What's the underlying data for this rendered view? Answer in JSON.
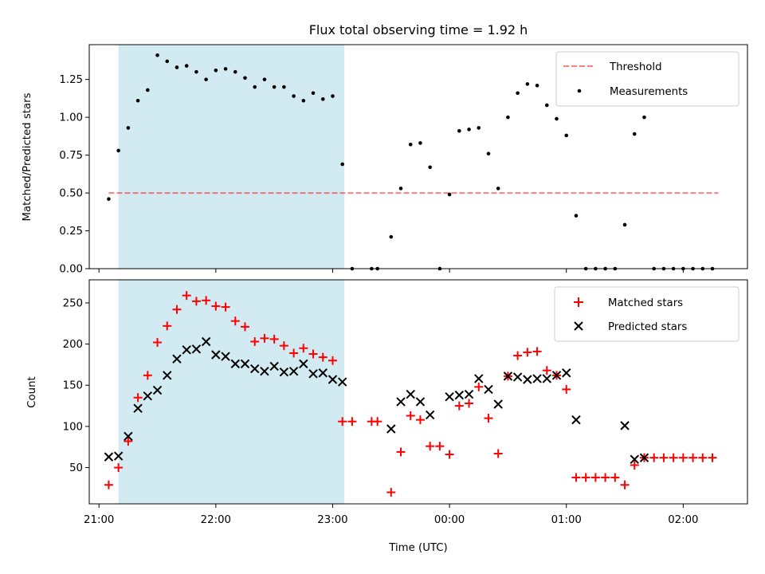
{
  "colors": {
    "shade": "#add8e6",
    "threshold": "#ff0000",
    "measurements": "#000000",
    "matched": "#ff0000",
    "predicted": "#000000"
  },
  "chart_data": [
    {
      "type": "scatter",
      "title": "Flux total observing time = 1.92 h",
      "xlabel": "",
      "ylabel": "Matched/Predicted stars",
      "x_unit": "UTC time",
      "xlim": [
        "20:55",
        "02:33"
      ],
      "ylim": [
        0,
        1.48
      ],
      "yticks": [
        0.0,
        0.25,
        0.5,
        0.75,
        1.0,
        1.25
      ],
      "ytick_labels": [
        "0.00",
        "0.25",
        "0.50",
        "0.75",
        "1.00",
        "1.25"
      ],
      "shaded_interval": [
        "21:10",
        "23:06"
      ],
      "legend_position": "upper right",
      "threshold": {
        "name": "Threshold",
        "style": "dashed",
        "x": [
          "21:05",
          "02:18"
        ],
        "y": 0.5
      },
      "series": [
        {
          "name": "Measurements",
          "marker": "dot",
          "points": [
            [
              "21:05",
              0.46
            ],
            [
              "21:10",
              0.78
            ],
            [
              "21:15",
              0.93
            ],
            [
              "21:20",
              1.11
            ],
            [
              "21:25",
              1.18
            ],
            [
              "21:30",
              1.41
            ],
            [
              "21:35",
              1.37
            ],
            [
              "21:40",
              1.33
            ],
            [
              "21:45",
              1.34
            ],
            [
              "21:50",
              1.3
            ],
            [
              "21:55",
              1.25
            ],
            [
              "22:00",
              1.31
            ],
            [
              "22:05",
              1.32
            ],
            [
              "22:10",
              1.3
            ],
            [
              "22:15",
              1.26
            ],
            [
              "22:20",
              1.2
            ],
            [
              "22:25",
              1.25
            ],
            [
              "22:30",
              1.2
            ],
            [
              "22:35",
              1.2
            ],
            [
              "22:40",
              1.14
            ],
            [
              "22:45",
              1.11
            ],
            [
              "22:50",
              1.16
            ],
            [
              "22:55",
              1.12
            ],
            [
              "23:00",
              1.14
            ],
            [
              "23:05",
              0.69
            ],
            [
              "23:10",
              0.0
            ],
            [
              "23:20",
              0.0
            ],
            [
              "23:23",
              0.0
            ],
            [
              "23:30",
              0.21
            ],
            [
              "23:35",
              0.53
            ],
            [
              "23:40",
              0.82
            ],
            [
              "23:45",
              0.83
            ],
            [
              "23:50",
              0.67
            ],
            [
              "23:55",
              0.0
            ],
            [
              "00:00",
              0.49
            ],
            [
              "00:05",
              0.91
            ],
            [
              "00:10",
              0.92
            ],
            [
              "00:15",
              0.93
            ],
            [
              "00:20",
              0.76
            ],
            [
              "00:25",
              0.53
            ],
            [
              "00:30",
              1.0
            ],
            [
              "00:35",
              1.16
            ],
            [
              "00:40",
              1.22
            ],
            [
              "00:45",
              1.21
            ],
            [
              "00:50",
              1.08
            ],
            [
              "00:55",
              0.99
            ],
            [
              "01:00",
              0.88
            ],
            [
              "01:05",
              0.35
            ],
            [
              "01:10",
              0.0
            ],
            [
              "01:15",
              0.0
            ],
            [
              "01:20",
              0.0
            ],
            [
              "01:25",
              0.0
            ],
            [
              "01:30",
              0.29
            ],
            [
              "01:35",
              0.89
            ],
            [
              "01:40",
              1.0
            ],
            [
              "01:45",
              0.0
            ],
            [
              "01:50",
              0.0
            ],
            [
              "01:55",
              0.0
            ],
            [
              "02:00",
              0.0
            ],
            [
              "02:05",
              0.0
            ],
            [
              "02:10",
              0.0
            ],
            [
              "02:15",
              0.0
            ]
          ]
        }
      ]
    },
    {
      "type": "scatter",
      "title": "",
      "xlabel": "Time (UTC)",
      "ylabel": "Count",
      "x_unit": "UTC time",
      "xlim": [
        "20:55",
        "02:33"
      ],
      "ylim": [
        6,
        278
      ],
      "yticks": [
        50,
        100,
        150,
        200,
        250
      ],
      "ytick_labels": [
        "50",
        "100",
        "150",
        "200",
        "250"
      ],
      "xticks": [
        "21:00",
        "22:00",
        "23:00",
        "00:00",
        "01:00",
        "02:00"
      ],
      "xtick_labels": [
        "21:00",
        "22:00",
        "23:00",
        "00:00",
        "01:00",
        "02:00"
      ],
      "shaded_interval": [
        "21:10",
        "23:06"
      ],
      "legend_position": "upper right",
      "series": [
        {
          "name": "Matched stars",
          "marker": "plus",
          "points": [
            [
              "21:05",
              29
            ],
            [
              "21:10",
              50
            ],
            [
              "21:15",
              82
            ],
            [
              "21:20",
              135
            ],
            [
              "21:25",
              162
            ],
            [
              "21:30",
              202
            ],
            [
              "21:35",
              222
            ],
            [
              "21:40",
              242
            ],
            [
              "21:45",
              259
            ],
            [
              "21:50",
              252
            ],
            [
              "21:55",
              253
            ],
            [
              "22:00",
              246
            ],
            [
              "22:05",
              245
            ],
            [
              "22:10",
              228
            ],
            [
              "22:15",
              221
            ],
            [
              "22:20",
              203
            ],
            [
              "22:25",
              207
            ],
            [
              "22:30",
              206
            ],
            [
              "22:35",
              198
            ],
            [
              "22:40",
              189
            ],
            [
              "22:45",
              195
            ],
            [
              "22:50",
              188
            ],
            [
              "22:55",
              184
            ],
            [
              "23:00",
              180
            ],
            [
              "23:05",
              106
            ],
            [
              "23:10",
              106
            ],
            [
              "23:20",
              106
            ],
            [
              "23:23",
              106
            ],
            [
              "23:30",
              20
            ],
            [
              "23:35",
              69
            ],
            [
              "23:40",
              113
            ],
            [
              "23:45",
              108
            ],
            [
              "23:50",
              76
            ],
            [
              "23:55",
              76
            ],
            [
              "00:00",
              66
            ],
            [
              "00:05",
              125
            ],
            [
              "00:10",
              128
            ],
            [
              "00:15",
              148
            ],
            [
              "00:20",
              110
            ],
            [
              "00:25",
              67
            ],
            [
              "00:30",
              161
            ],
            [
              "00:35",
              186
            ],
            [
              "00:40",
              190
            ],
            [
              "00:45",
              191
            ],
            [
              "00:50",
              168
            ],
            [
              "00:55",
              162
            ],
            [
              "01:00",
              145
            ],
            [
              "01:05",
              38
            ],
            [
              "01:10",
              38
            ],
            [
              "01:15",
              38
            ],
            [
              "01:20",
              38
            ],
            [
              "01:25",
              38
            ],
            [
              "01:30",
              29
            ],
            [
              "01:35",
              53
            ],
            [
              "01:40",
              62
            ],
            [
              "01:45",
              62
            ],
            [
              "01:50",
              62
            ],
            [
              "01:55",
              62
            ],
            [
              "02:00",
              62
            ],
            [
              "02:05",
              62
            ],
            [
              "02:10",
              62
            ],
            [
              "02:15",
              62
            ]
          ]
        },
        {
          "name": "Predicted stars",
          "marker": "cross",
          "points": [
            [
              "21:05",
              63
            ],
            [
              "21:10",
              64
            ],
            [
              "21:15",
              88
            ],
            [
              "21:20",
              122
            ],
            [
              "21:25",
              137
            ],
            [
              "21:30",
              144
            ],
            [
              "21:35",
              162
            ],
            [
              "21:40",
              182
            ],
            [
              "21:45",
              193
            ],
            [
              "21:50",
              194
            ],
            [
              "21:55",
              203
            ],
            [
              "22:00",
              187
            ],
            [
              "22:05",
              185
            ],
            [
              "22:10",
              176
            ],
            [
              "22:15",
              176
            ],
            [
              "22:20",
              170
            ],
            [
              "22:25",
              167
            ],
            [
              "22:30",
              173
            ],
            [
              "22:35",
              166
            ],
            [
              "22:40",
              167
            ],
            [
              "22:45",
              176
            ],
            [
              "22:50",
              164
            ],
            [
              "22:55",
              165
            ],
            [
              "23:00",
              157
            ],
            [
              "23:05",
              154
            ],
            [
              "23:30",
              97
            ],
            [
              "23:35",
              130
            ],
            [
              "23:40",
              139
            ],
            [
              "23:45",
              130
            ],
            [
              "23:50",
              114
            ],
            [
              "00:00",
              136
            ],
            [
              "00:05",
              138
            ],
            [
              "00:10",
              139
            ],
            [
              "00:15",
              158
            ],
            [
              "00:20",
              145
            ],
            [
              "00:25",
              127
            ],
            [
              "00:30",
              161
            ],
            [
              "00:35",
              160
            ],
            [
              "00:40",
              157
            ],
            [
              "00:45",
              158
            ],
            [
              "00:50",
              158
            ],
            [
              "00:55",
              162
            ],
            [
              "01:00",
              165
            ],
            [
              "01:05",
              108
            ],
            [
              "01:30",
              101
            ],
            [
              "01:35",
              60
            ],
            [
              "01:40",
              62
            ]
          ]
        }
      ]
    }
  ]
}
